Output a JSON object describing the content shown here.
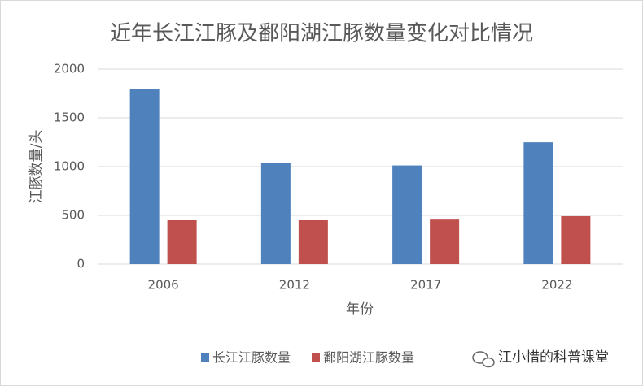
{
  "chart_data": {
    "type": "bar",
    "title": "近年长江江豚及鄱阳湖江豚数量变化对比情况",
    "x_label": "年份",
    "y_label": "江豚数量/头",
    "categories": [
      "2006",
      "2012",
      "2017",
      "2022"
    ],
    "series": [
      {
        "name": "长江江豚数量",
        "color": "#4f81bd",
        "values": [
          1800,
          1040,
          1012,
          1249
        ]
      },
      {
        "name": "鄱阳湖江豚数量",
        "color": "#c0504d",
        "values": [
          450,
          450,
          457,
          492
        ]
      }
    ],
    "ylim": [
      0,
      2000
    ],
    "yticks": [
      0,
      500,
      1000,
      1500,
      2000
    ],
    "grid": true,
    "legend": "bottom"
  },
  "watermark": "江小惜的科普课堂"
}
